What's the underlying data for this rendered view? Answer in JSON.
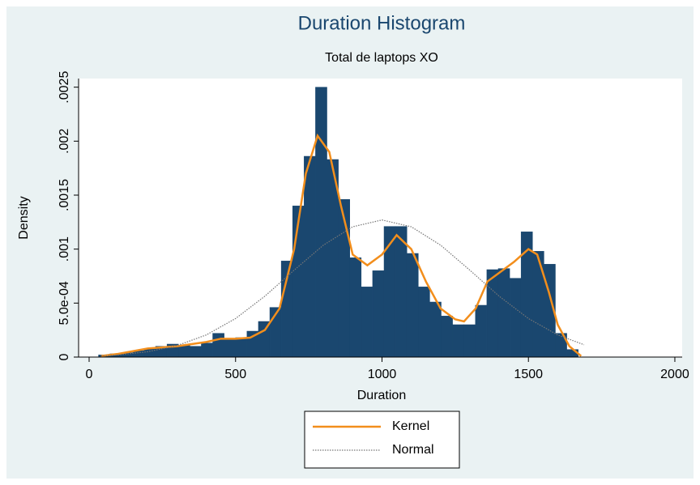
{
  "chart_data": {
    "type": "histogram",
    "title": "Duration Histogram",
    "subtitle": "Total de laptops XO",
    "x_label": "Duration",
    "y_label": "Density",
    "color": "#1a476f",
    "bins": [
      32,
      71,
      110,
      149,
      188,
      227,
      266,
      305,
      344,
      383,
      422,
      461,
      500,
      539,
      578,
      617,
      656,
      695,
      734,
      773,
      812,
      851,
      890,
      929,
      968,
      1007,
      1046,
      1085,
      1124,
      1163,
      1202,
      1241,
      1280,
      1319,
      1358,
      1397,
      1436,
      1475,
      1514,
      1553,
      1592,
      1631,
      1670
    ],
    "values": [
      2e-05,
      3e-05,
      4e-05,
      6e-05,
      8e-05,
      0.0001,
      0.00012,
      0.00011,
      0.0001,
      0.00013,
      0.00022,
      0.00017,
      0.00018,
      0.00024,
      0.00033,
      0.00046,
      0.00089,
      0.0014,
      0.00186,
      0.0025,
      0.00183,
      0.00146,
      0.00092,
      0.00065,
      0.0008,
      0.00121,
      0.00121,
      0.00096,
      0.00065,
      0.00051,
      0.00038,
      0.0003,
      0.0003,
      0.00048,
      0.00081,
      0.00082,
      0.00073,
      0.00116,
      0.00098,
      0.00086,
      0.00022,
      7e-05
    ],
    "series": [
      {
        "name": "Kernel",
        "color": "#f28e1c",
        "style": "solid",
        "x": [
          40,
          100,
          200,
          300,
          400,
          450,
          500,
          550,
          600,
          650,
          700,
          740,
          780,
          820,
          860,
          900,
          950,
          1000,
          1050,
          1100,
          1150,
          1200,
          1250,
          1280,
          1320,
          1360,
          1400,
          1450,
          1500,
          1530,
          1570,
          1600,
          1640,
          1680
        ],
        "values": [
          1e-05,
          3e-05,
          8e-05,
          0.0001,
          0.00014,
          0.00017,
          0.00017,
          0.00018,
          0.00025,
          0.00045,
          0.001,
          0.0017,
          0.00205,
          0.0019,
          0.0014,
          0.00095,
          0.00085,
          0.00095,
          0.00113,
          0.001,
          0.0007,
          0.00045,
          0.00035,
          0.00033,
          0.00045,
          0.0007,
          0.00078,
          0.00088,
          0.001,
          0.00095,
          0.0006,
          0.0003,
          0.0001,
          1e-05
        ]
      },
      {
        "name": "Normal",
        "color": "#777777",
        "style": "dotted",
        "x": [
          40,
          100,
          200,
          300,
          400,
          500,
          600,
          700,
          800,
          900,
          1000,
          1100,
          1200,
          1300,
          1400,
          1500,
          1600,
          1690
        ],
        "values": [
          1.18e-05,
          2.09e-05,
          4.94e-05,
          0.000106,
          0.000205,
          0.000357,
          0.000564,
          0.000805,
          0.001037,
          0.001207,
          0.00127,
          0.001207,
          0.001037,
          0.000805,
          0.000564,
          0.000357,
          0.000205,
          0.000114
        ]
      }
    ],
    "xlim": [
      -36,
      2025
    ],
    "ylim": [
      0,
      0.00258
    ],
    "xticks": [
      0,
      500,
      1000,
      1500,
      2000
    ],
    "yticks": [
      0,
      {
        "value": 0.0005,
        "label": "5.0e-04"
      },
      {
        "value": 0.001,
        "label": ".001"
      },
      {
        "value": 0.0015,
        "label": ".0015"
      },
      {
        "value": 0.002,
        "label": ".002"
      },
      {
        "value": 0.0025,
        "label": ".0025"
      }
    ],
    "legend": "bottom"
  }
}
